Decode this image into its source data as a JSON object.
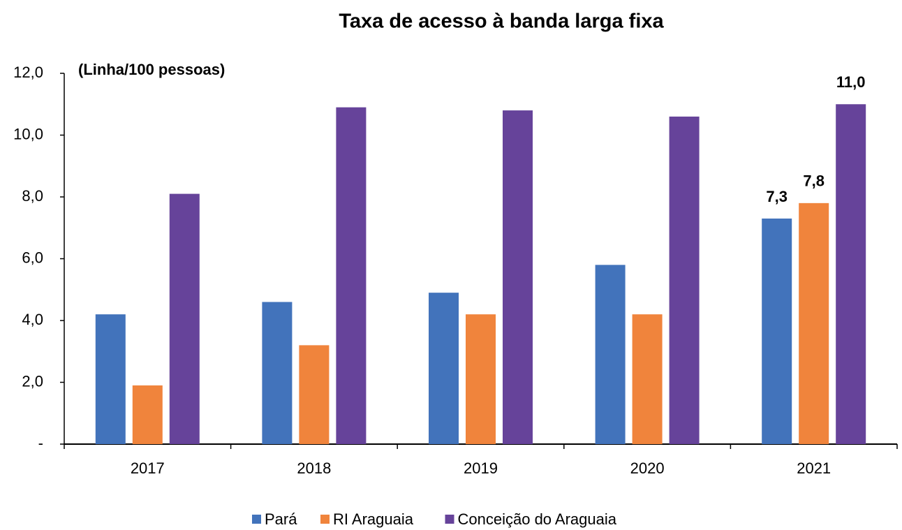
{
  "chart_data": {
    "type": "bar",
    "title": "Taxa de acesso à banda larga fixa",
    "y_axis_label": "(Linha/100 pessoas)",
    "categories": [
      "2017",
      "2018",
      "2019",
      "2020",
      "2021"
    ],
    "series": [
      {
        "name": "Pará",
        "color": "#4273bb",
        "values": [
          4.2,
          4.6,
          4.9,
          5.8,
          7.3
        ],
        "value_labels": [
          null,
          null,
          null,
          null,
          "7,3"
        ]
      },
      {
        "name": "RI Araguaia",
        "color": "#f0843c",
        "values": [
          1.9,
          3.2,
          4.2,
          4.2,
          7.8
        ],
        "value_labels": [
          null,
          null,
          null,
          null,
          "7,8"
        ]
      },
      {
        "name": "Conceição do Araguaia",
        "color": "#66439a",
        "values": [
          8.1,
          10.9,
          10.8,
          10.6,
          11.0
        ],
        "value_labels": [
          null,
          null,
          null,
          null,
          "11,0"
        ]
      }
    ],
    "ylim": [
      0,
      12
    ],
    "yticks": [
      {
        "value": 0,
        "label": "-"
      },
      {
        "value": 2,
        "label": "2,0"
      },
      {
        "value": 4,
        "label": "4,0"
      },
      {
        "value": 6,
        "label": "6,0"
      },
      {
        "value": 8,
        "label": "8,0"
      },
      {
        "value": 10,
        "label": "10,0"
      },
      {
        "value": 12,
        "label": "12,0"
      }
    ],
    "grid": false,
    "legend": "bottom"
  }
}
